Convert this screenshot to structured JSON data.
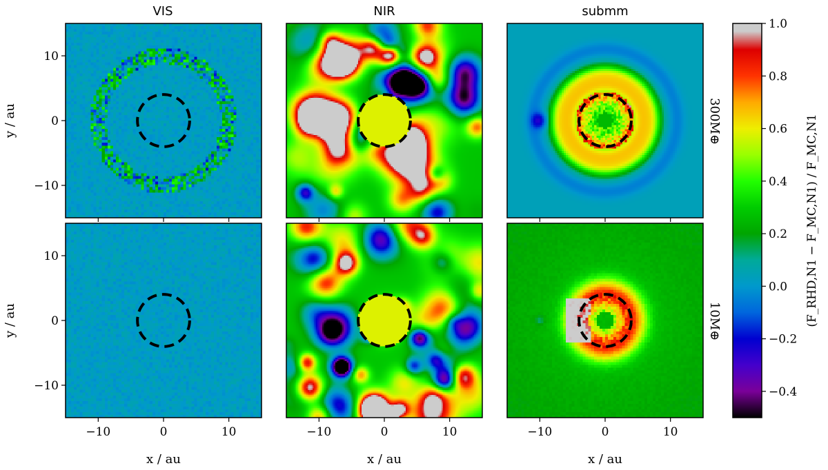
{
  "chart_data": {
    "type": "heatmap",
    "column_titles": [
      "VIS",
      "NIR",
      "submm"
    ],
    "row_labels": [
      "300M⊕",
      "10M⊕"
    ],
    "xlabel": "x / au",
    "ylabel": "y / au",
    "xlim": [
      -15,
      15
    ],
    "ylim": [
      -15,
      15
    ],
    "xticks": [
      -10,
      0,
      10
    ],
    "yticks": [
      10,
      0,
      -10
    ],
    "xtick_labels": [
      "−10",
      "0",
      "10"
    ],
    "ytick_labels": [
      "10",
      "0",
      "−10"
    ],
    "colorbar": {
      "label": "(F_RHD,N1 − F_MC,N1) / F_MC,N1",
      "range": [
        -0.5,
        1.0
      ],
      "ticks": [
        1.0,
        0.8,
        0.6,
        0.4,
        0.2,
        0.0,
        -0.2,
        -0.4
      ],
      "tick_labels": [
        "1.0",
        "0.8",
        "0.6",
        "0.4",
        "0.2",
        "0.0",
        "−0.2",
        "−0.4"
      ],
      "colormap": "nipy_spectral-like",
      "color_stops": [
        {
          "v": -0.5,
          "color": "#000000"
        },
        {
          "v": -0.4,
          "color": "#7a0099"
        },
        {
          "v": -0.3,
          "color": "#4400cc"
        },
        {
          "v": -0.2,
          "color": "#0000d0"
        },
        {
          "v": -0.1,
          "color": "#0066dd"
        },
        {
          "v": 0.0,
          "color": "#0099cc"
        },
        {
          "v": 0.1,
          "color": "#00aa99"
        },
        {
          "v": 0.2,
          "color": "#00a500"
        },
        {
          "v": 0.3,
          "color": "#00cc00"
        },
        {
          "v": 0.4,
          "color": "#22ff00"
        },
        {
          "v": 0.5,
          "color": "#99ff00"
        },
        {
          "v": 0.6,
          "color": "#eeee00"
        },
        {
          "v": 0.7,
          "color": "#ffaa00"
        },
        {
          "v": 0.8,
          "color": "#ff3300"
        },
        {
          "v": 0.9,
          "color": "#dd0000"
        },
        {
          "v": 0.97,
          "color": "#cccccc"
        },
        {
          "v": 1.0,
          "color": "#cccccc"
        }
      ]
    },
    "planet_circle_radius_au": 4,
    "panels": [
      {
        "row": 0,
        "col": 0,
        "name": "VIS 300M⊕",
        "base_value": 0.03,
        "feature": "faint noisy ring at r≈10 au"
      },
      {
        "row": 0,
        "col": 1,
        "name": "NIR 300M⊕",
        "base_value": 0.3,
        "feature": "mottled blobs, inner disk ≈0.55"
      },
      {
        "row": 0,
        "col": 2,
        "name": "submm 300M⊕",
        "base_value": 0.05,
        "feature": "bright ring at r≈4–7 au, dip at (−10,0)"
      },
      {
        "row": 1,
        "col": 0,
        "name": "VIS 10M⊕",
        "base_value": 0.03,
        "feature": "uniform noise"
      },
      {
        "row": 1,
        "col": 1,
        "name": "NIR 10M⊕",
        "base_value": 0.3,
        "feature": "mottled blobs, inner disk ≈0.55"
      },
      {
        "row": 1,
        "col": 2,
        "name": "submm 10M⊕",
        "base_value": 0.35,
        "feature": "bright ring at r≈4 au, gray arc on left"
      }
    ]
  }
}
